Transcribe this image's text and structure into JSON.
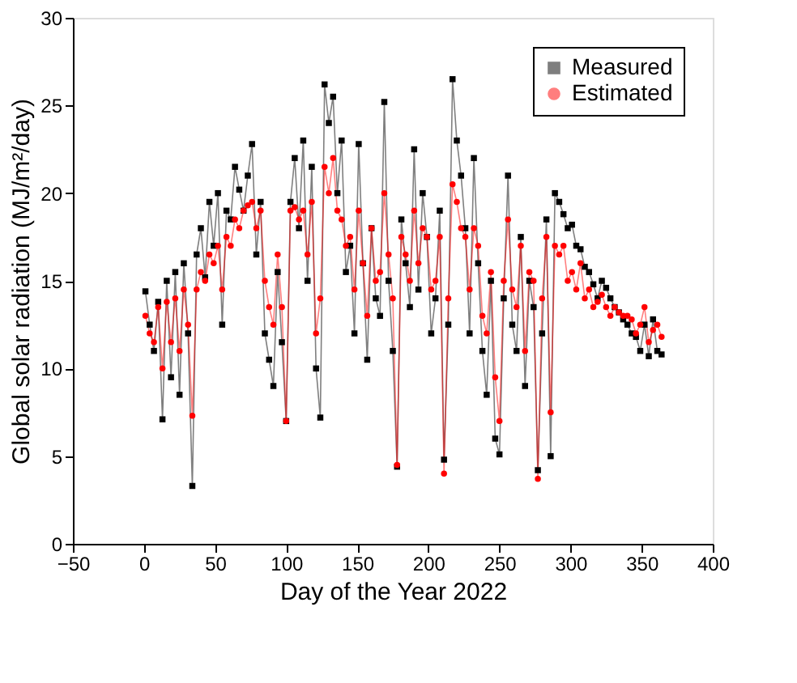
{
  "chart_data": {
    "type": "line",
    "xlabel": "Day of the Year 2022",
    "ylabel": "Global solar radiation (MJ/m²/day)",
    "x": [
      1,
      4,
      7,
      10,
      13,
      16,
      19,
      22,
      25,
      28,
      31,
      34,
      37,
      40,
      43,
      46,
      49,
      52,
      55,
      58,
      61,
      64,
      67,
      70,
      73,
      76,
      79,
      82,
      85,
      88,
      91,
      94,
      97,
      100,
      103,
      106,
      109,
      112,
      115,
      118,
      121,
      124,
      127,
      130,
      133,
      136,
      139,
      142,
      145,
      148,
      151,
      154,
      157,
      160,
      163,
      166,
      169,
      172,
      175,
      178,
      181,
      184,
      187,
      190,
      193,
      196,
      199,
      202,
      205,
      208,
      211,
      214,
      217,
      220,
      223,
      226,
      229,
      232,
      235,
      238,
      241,
      244,
      247,
      250,
      253,
      256,
      259,
      262,
      265,
      268,
      271,
      274,
      277,
      280,
      283,
      286,
      289,
      292,
      295,
      298,
      301,
      304,
      307,
      310,
      313,
      316,
      319,
      322,
      325,
      328,
      331,
      334,
      337,
      340,
      343,
      346,
      349,
      352,
      355,
      358,
      361,
      364
    ],
    "series": [
      {
        "name": "Measured",
        "color": "#000000",
        "marker": "square",
        "values": [
          14.4,
          12.5,
          11.0,
          13.8,
          7.1,
          15.0,
          9.5,
          15.5,
          8.5,
          16.0,
          12.0,
          3.3,
          16.5,
          18.0,
          15.2,
          19.5,
          17.0,
          20.0,
          12.5,
          19.0,
          18.5,
          21.5,
          20.2,
          19.0,
          21.0,
          22.8,
          16.5,
          19.5,
          12.0,
          10.5,
          9.0,
          15.5,
          11.5,
          7.0,
          19.5,
          22.0,
          18.0,
          23.0,
          15.0,
          21.5,
          10.0,
          7.2,
          26.2,
          24.0,
          25.5,
          20.0,
          23.0,
          15.5,
          17.0,
          12.0,
          22.8,
          16.0,
          10.5,
          18.0,
          14.0,
          13.0,
          25.2,
          15.0,
          11.0,
          4.4,
          18.5,
          16.0,
          13.5,
          22.5,
          14.5,
          20.0,
          17.5,
          12.0,
          14.0,
          19.0,
          4.8,
          12.5,
          26.5,
          23.0,
          21.0,
          18.0,
          12.0,
          22.0,
          16.0,
          11.0,
          8.5,
          15.0,
          6.0,
          5.1,
          14.0,
          21.0,
          12.5,
          11.0,
          17.5,
          9.0,
          15.0,
          13.5,
          4.2,
          12.0,
          18.5,
          5.0,
          20.0,
          19.5,
          18.8,
          18.0,
          18.2,
          17.0,
          16.8,
          15.8,
          15.5,
          14.8,
          14.0,
          15.0,
          14.6,
          14.0,
          13.5,
          13.2,
          12.8,
          12.5,
          12.0,
          11.8,
          11.0,
          12.5,
          10.7,
          12.8,
          11.0,
          10.8
        ]
      },
      {
        "name": "Estimated",
        "color": "#ff0000",
        "marker": "circle",
        "values": [
          13.0,
          12.0,
          11.5,
          13.5,
          10.0,
          13.8,
          11.5,
          14.0,
          11.0,
          14.5,
          12.5,
          7.3,
          14.5,
          15.5,
          15.0,
          16.5,
          16.0,
          17.0,
          14.5,
          17.5,
          17.0,
          18.5,
          18.0,
          19.0,
          19.3,
          19.5,
          18.0,
          19.0,
          15.0,
          13.5,
          12.5,
          16.5,
          13.5,
          7.0,
          19.0,
          19.2,
          18.5,
          19.0,
          16.5,
          19.5,
          12.0,
          14.0,
          21.5,
          20.0,
          22.0,
          19.0,
          18.5,
          17.0,
          17.5,
          14.5,
          19.0,
          16.0,
          13.0,
          18.0,
          15.0,
          15.5,
          20.0,
          16.5,
          14.0,
          4.5,
          17.5,
          16.5,
          15.0,
          19.0,
          16.0,
          18.0,
          17.5,
          14.5,
          15.0,
          17.5,
          4.0,
          14.0,
          20.5,
          19.5,
          18.0,
          17.5,
          14.5,
          18.0,
          17.0,
          13.0,
          12.0,
          15.5,
          9.5,
          7.0,
          15.0,
          18.5,
          14.5,
          13.5,
          17.0,
          11.0,
          15.5,
          15.0,
          3.7,
          14.0,
          17.5,
          7.5,
          17.0,
          16.5,
          17.0,
          15.0,
          15.5,
          14.5,
          16.0,
          14.0,
          14.5,
          13.5,
          13.8,
          14.2,
          13.5,
          13.0,
          13.5,
          13.2,
          13.0,
          13.0,
          12.8,
          12.0,
          12.5,
          13.5,
          11.5,
          12.2,
          12.5,
          11.8
        ]
      }
    ],
    "xlim": [
      -50,
      400
    ],
    "xticks": [
      -50,
      0,
      50,
      100,
      150,
      200,
      250,
      300,
      350,
      400
    ],
    "ylim": [
      0,
      30
    ],
    "yticks": [
      0,
      5,
      10,
      15,
      20,
      25,
      30
    ],
    "grid": false,
    "legend": "top right",
    "line_style": "solid"
  }
}
